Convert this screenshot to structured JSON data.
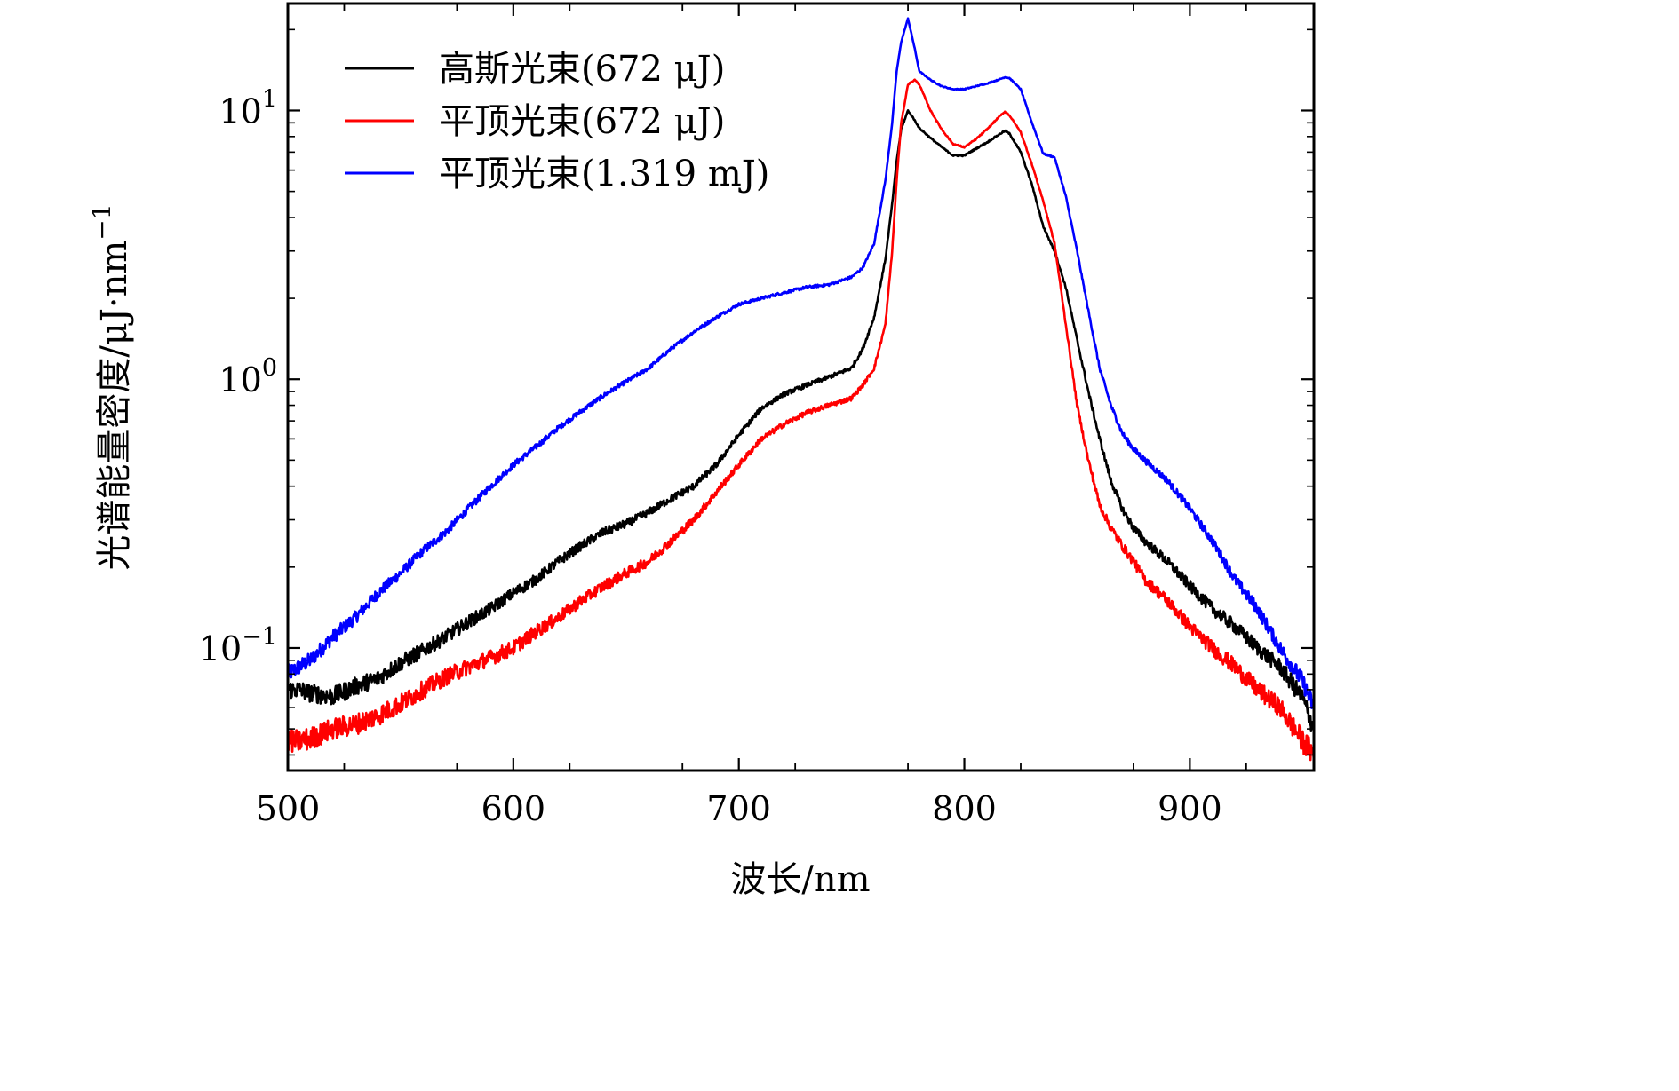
{
  "chart_data": {
    "type": "line",
    "title": "",
    "xlabel": "波长/nm",
    "ylabel": "光谱能量密度/μJ·nm",
    "ylabel_superscript": "−1",
    "xlim": [
      500,
      955
    ],
    "ylim": [
      0.035,
      25
    ],
    "yscale": "log",
    "x_ticks": [
      500,
      600,
      700,
      800,
      900
    ],
    "x_tick_labels": [
      "500",
      "600",
      "700",
      "800",
      "900"
    ],
    "y_ticks": [
      {
        "value": 0.1,
        "base": "10",
        "exp": "−1"
      },
      {
        "value": 1,
        "base": "10",
        "exp": "0"
      },
      {
        "value": 10,
        "base": "10",
        "exp": "1"
      }
    ],
    "grid": false,
    "legend_position": "top-left",
    "series": [
      {
        "name": "高斯光束(672 μJ)",
        "color": "#000000",
        "x": [
          500,
          505,
          510,
          520,
          530,
          540,
          550,
          560,
          570,
          580,
          590,
          600,
          610,
          620,
          630,
          640,
          650,
          660,
          670,
          680,
          690,
          700,
          710,
          720,
          730,
          740,
          750,
          755,
          760,
          765,
          768,
          770,
          772,
          775,
          778,
          780,
          785,
          790,
          795,
          800,
          805,
          810,
          815,
          818,
          820,
          825,
          830,
          835,
          840,
          845,
          850,
          855,
          860,
          865,
          870,
          875,
          880,
          890,
          900,
          910,
          920,
          930,
          940,
          950,
          955
        ],
        "y": [
          0.07,
          0.07,
          0.068,
          0.066,
          0.072,
          0.077,
          0.088,
          0.098,
          0.11,
          0.125,
          0.14,
          0.16,
          0.18,
          0.21,
          0.24,
          0.27,
          0.29,
          0.32,
          0.36,
          0.4,
          0.48,
          0.62,
          0.78,
          0.88,
          0.95,
          1.02,
          1.1,
          1.3,
          1.7,
          2.8,
          4.5,
          6.5,
          8.5,
          10.0,
          9.2,
          8.6,
          7.9,
          7.3,
          6.8,
          6.8,
          7.2,
          7.6,
          8.1,
          8.4,
          8.2,
          7.0,
          5.3,
          3.7,
          3.0,
          2.2,
          1.4,
          0.9,
          0.6,
          0.42,
          0.33,
          0.28,
          0.25,
          0.21,
          0.17,
          0.14,
          0.12,
          0.1,
          0.085,
          0.065,
          0.05
        ]
      },
      {
        "name": "平顶光束(672 μJ)",
        "color": "#ff0000",
        "x": [
          500,
          505,
          510,
          520,
          530,
          540,
          550,
          560,
          570,
          580,
          590,
          600,
          610,
          620,
          630,
          640,
          650,
          660,
          670,
          680,
          690,
          700,
          710,
          720,
          730,
          740,
          750,
          755,
          760,
          765,
          768,
          770,
          772,
          775,
          778,
          780,
          785,
          790,
          795,
          800,
          805,
          810,
          815,
          818,
          820,
          825,
          830,
          835,
          840,
          845,
          850,
          855,
          860,
          865,
          870,
          875,
          880,
          890,
          900,
          910,
          920,
          930,
          940,
          950,
          955
        ],
        "y": [
          0.045,
          0.045,
          0.046,
          0.05,
          0.052,
          0.056,
          0.062,
          0.07,
          0.078,
          0.085,
          0.092,
          0.1,
          0.115,
          0.13,
          0.15,
          0.17,
          0.19,
          0.21,
          0.25,
          0.3,
          0.38,
          0.48,
          0.6,
          0.68,
          0.75,
          0.8,
          0.85,
          0.95,
          1.1,
          1.6,
          3.0,
          5.5,
          9.0,
          12.5,
          13.0,
          12.5,
          10.0,
          8.5,
          7.5,
          7.3,
          7.8,
          8.5,
          9.4,
          9.9,
          9.6,
          8.3,
          6.3,
          4.6,
          3.2,
          1.6,
          0.8,
          0.5,
          0.34,
          0.28,
          0.24,
          0.21,
          0.18,
          0.15,
          0.12,
          0.1,
          0.085,
          0.07,
          0.06,
          0.045,
          0.04
        ]
      },
      {
        "name": "平顶光束(1.319 mJ)",
        "color": "#0000ff",
        "x": [
          500,
          505,
          510,
          520,
          530,
          540,
          550,
          560,
          570,
          580,
          590,
          600,
          610,
          620,
          630,
          640,
          650,
          660,
          670,
          680,
          690,
          700,
          710,
          720,
          730,
          740,
          750,
          755,
          760,
          765,
          768,
          770,
          772,
          775,
          778,
          780,
          785,
          790,
          795,
          800,
          805,
          810,
          815,
          818,
          820,
          825,
          830,
          835,
          840,
          845,
          850,
          855,
          860,
          865,
          870,
          875,
          880,
          890,
          900,
          910,
          920,
          930,
          940,
          950,
          955
        ],
        "y": [
          0.08,
          0.085,
          0.09,
          0.11,
          0.13,
          0.16,
          0.19,
          0.23,
          0.27,
          0.33,
          0.4,
          0.48,
          0.56,
          0.66,
          0.76,
          0.87,
          0.98,
          1.1,
          1.3,
          1.5,
          1.7,
          1.9,
          2.0,
          2.1,
          2.2,
          2.25,
          2.4,
          2.6,
          3.2,
          5.5,
          9.0,
          14.0,
          18.0,
          22.0,
          17.0,
          14.0,
          13.0,
          12.3,
          12.0,
          12.0,
          12.3,
          12.6,
          13.0,
          13.3,
          13.2,
          12.0,
          9.0,
          6.9,
          6.7,
          4.8,
          3.0,
          1.8,
          1.1,
          0.8,
          0.63,
          0.55,
          0.5,
          0.42,
          0.33,
          0.25,
          0.18,
          0.14,
          0.1,
          0.075,
          0.06
        ]
      }
    ]
  }
}
